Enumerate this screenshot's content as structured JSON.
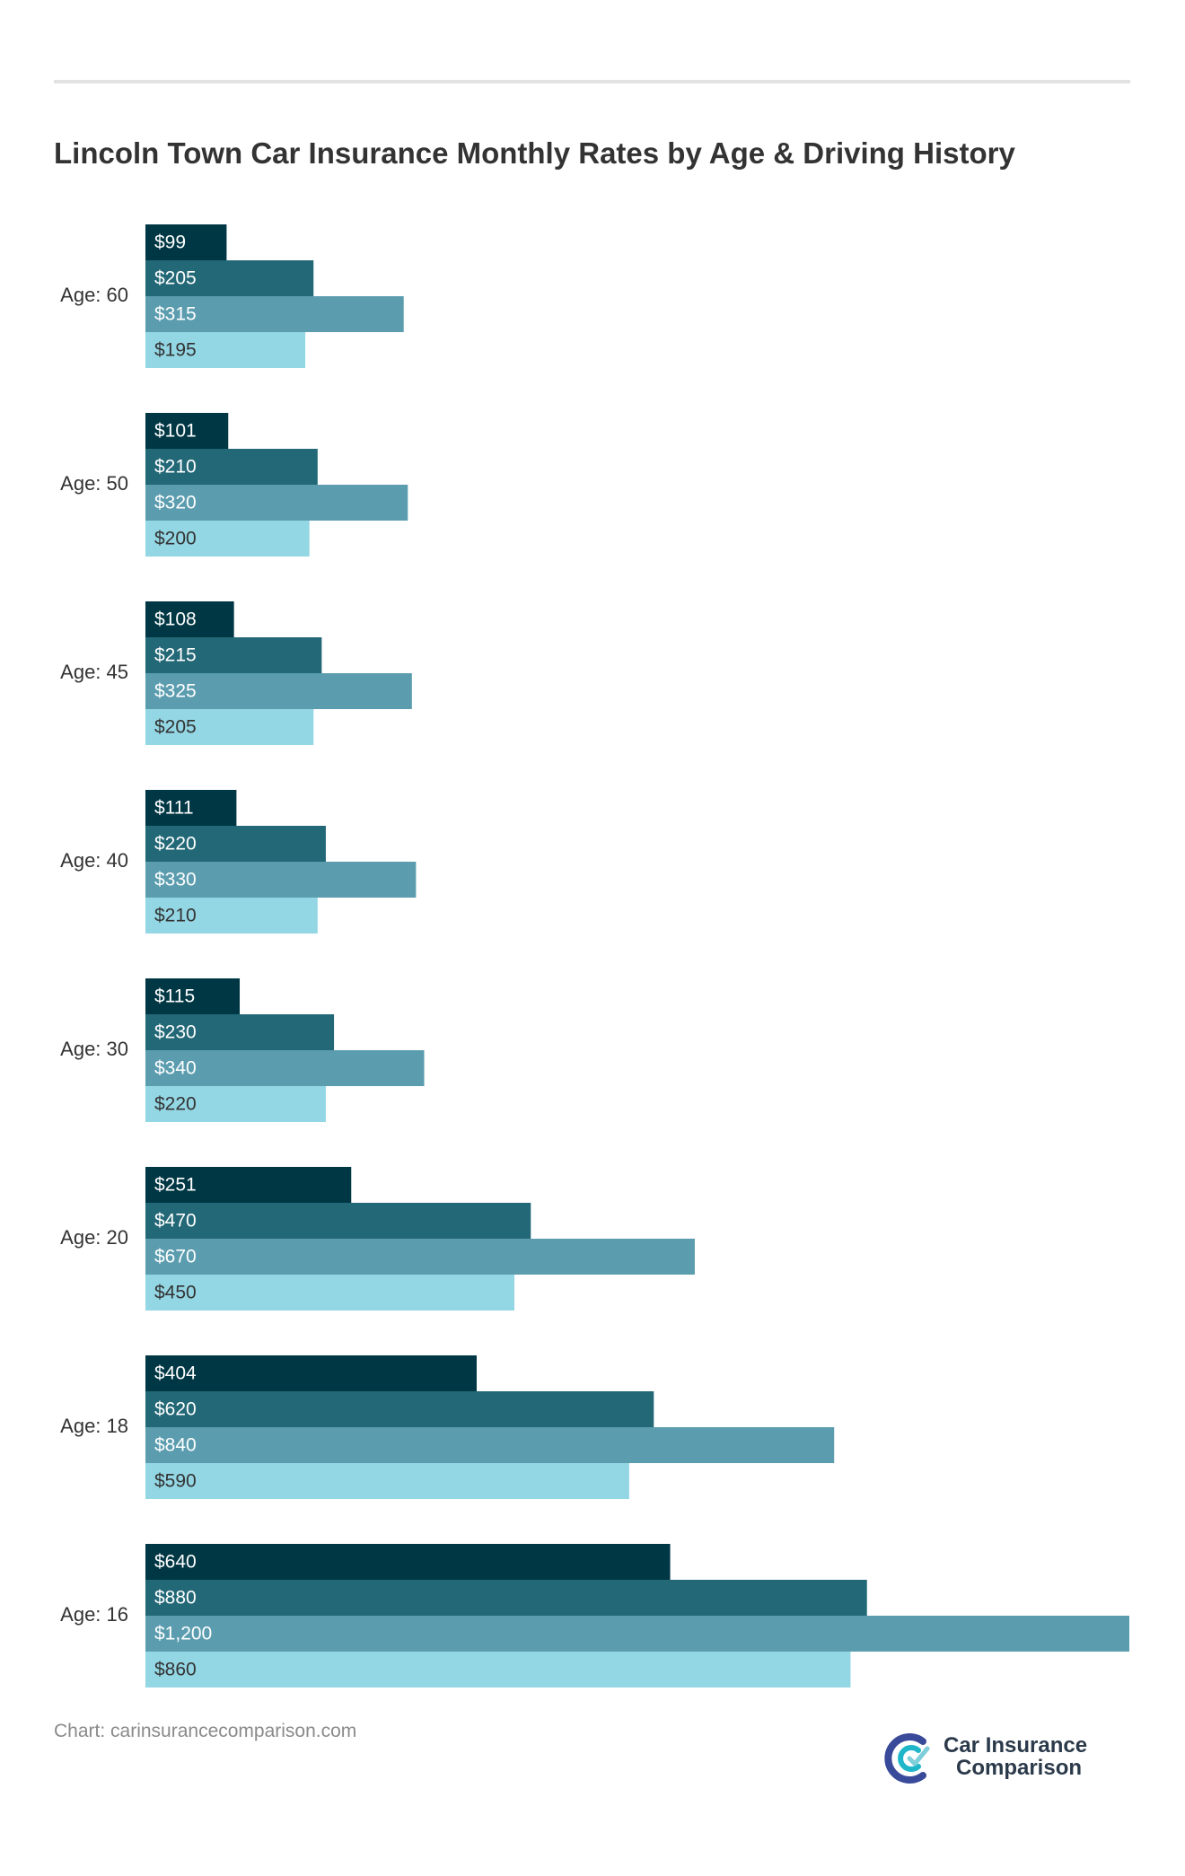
{
  "page": {
    "source": "Chart: carinsurancecomparison.com",
    "brand": {
      "line1": "Car Insurance",
      "line2": "Comparison",
      "colors": {
        "c_dark": "#3a4a9a",
        "c_light": "#1fb6c9",
        "check": "#7fcfda",
        "text": "#2b3a4a"
      }
    }
  },
  "chart_data": {
    "type": "bar",
    "orientation": "horizontal",
    "title": "Lincoln Town Car Insurance Monthly Rates by Age & Driving History",
    "xlabel": "",
    "ylabel": "",
    "xlim": [
      0,
      1200
    ],
    "grid": false,
    "legend": "none",
    "value_prefix": "$",
    "categories": [
      "Age: 60",
      "Age: 50",
      "Age: 45",
      "Age: 40",
      "Age: 30",
      "Age: 20",
      "Age: 18",
      "Age: 16"
    ],
    "series": [
      {
        "color": "#003744",
        "values": [
          99,
          101,
          108,
          111,
          115,
          251,
          404,
          640
        ],
        "labels": [
          "$99",
          "$101",
          "$108",
          "$111",
          "$115",
          "$251",
          "$404",
          "$640"
        ]
      },
      {
        "color": "#236877",
        "values": [
          205,
          210,
          215,
          220,
          230,
          470,
          620,
          880
        ],
        "labels": [
          "$205",
          "$210",
          "$215",
          "$220",
          "$230",
          "$470",
          "$620",
          "$880"
        ]
      },
      {
        "color": "#5b9daf",
        "values": [
          315,
          320,
          325,
          330,
          340,
          670,
          840,
          1200
        ],
        "labels": [
          "$315",
          "$320",
          "$325",
          "$330",
          "$340",
          "$670",
          "$840",
          "$1,200"
        ]
      },
      {
        "color": "#93d6e4",
        "values": [
          195,
          200,
          205,
          210,
          220,
          450,
          590,
          860
        ],
        "labels": [
          "$195",
          "$200",
          "$205",
          "$210",
          "$220",
          "$450",
          "$590",
          "$860"
        ]
      }
    ],
    "label_colors": [
      "#ffffff",
      "#ffffff",
      "#ffffff",
      "#333333"
    ]
  }
}
